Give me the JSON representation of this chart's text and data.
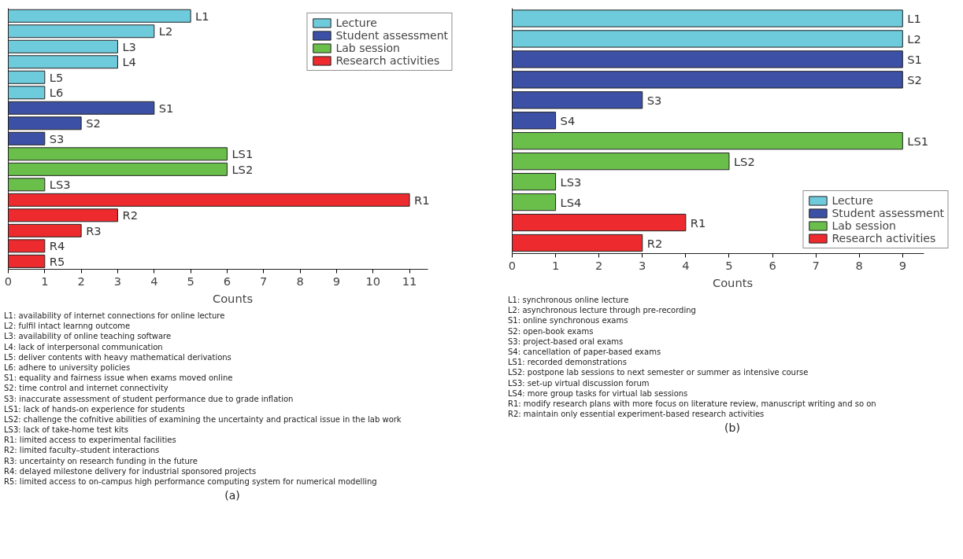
{
  "chart_data": [
    {
      "type": "bar",
      "orientation": "horizontal",
      "xlabel": "Counts",
      "xlim": [
        0,
        11.5
      ],
      "xticks": [
        0,
        1,
        2,
        3,
        4,
        5,
        6,
        7,
        8,
        9,
        10,
        11
      ],
      "tick_labels": "x",
      "grid": false,
      "legend": "top right",
      "categories": [
        "L1",
        "L2",
        "L3",
        "L4",
        "L5",
        "L6",
        "S1",
        "S2",
        "S3",
        "LS1",
        "LS2",
        "LS3",
        "R1",
        "R2",
        "R3",
        "R4",
        "R5"
      ],
      "series": [
        {
          "name": "Lecture",
          "color": "#6ecbdc",
          "values": [
            5,
            4,
            3,
            3,
            1,
            1,
            null,
            null,
            null,
            null,
            null,
            null,
            null,
            null,
            null,
            null,
            null
          ]
        },
        {
          "name": "Student assessment",
          "color": "#3c50a5",
          "values": [
            null,
            null,
            null,
            null,
            null,
            null,
            4,
            2,
            1,
            null,
            null,
            null,
            null,
            null,
            null,
            null,
            null
          ]
        },
        {
          "name": "Lab session",
          "color": "#6abf4b",
          "values": [
            null,
            null,
            null,
            null,
            null,
            null,
            null,
            null,
            null,
            6,
            6,
            1,
            null,
            null,
            null,
            null,
            null
          ]
        },
        {
          "name": "Research activities",
          "color": "#ed2a2e",
          "values": [
            null,
            null,
            null,
            null,
            null,
            null,
            null,
            null,
            null,
            null,
            null,
            null,
            11,
            3,
            2,
            1,
            1
          ]
        }
      ],
      "annotations": [
        "L1: availability of internet connections for online lecture",
        "L2: fulfil intact learnng outcome",
        "L3: availability of online teaching software",
        "L4: lack of interpersonal communication",
        "L5: deliver contents with heavy mathematical derivations",
        "L6: adhere to university policies",
        "S1: equality and fairness issue when exams moved online",
        "S2: time control and internet connectivity",
        "S3: inaccurate assessment of student performance due to grade inflation",
        "LS1: lack of hands-on experience for students",
        "LS2: challenge the cofnitive abilities of examining the uncertainty and practical issue in the lab work",
        "LS3: lack of take-home test kits",
        "R1: limited access to experimental facilities",
        "R2: limited faculty–student interactions",
        "R3: uncertainty on research funding in the future",
        "R4: delayed milestone delivery for industrial sponsored projects",
        "R5: limited access to on-campus high performance computing system for numerical modelling",
        "(a)"
      ]
    },
    {
      "type": "bar",
      "orientation": "horizontal",
      "xlabel": "Counts",
      "xlim": [
        0,
        9.5
      ],
      "xticks": [
        0,
        1,
        2,
        3,
        4,
        5,
        6,
        7,
        8,
        9
      ],
      "tick_labels": "x",
      "grid": false,
      "legend": "bottom right",
      "categories": [
        "L1",
        "L2",
        "S1",
        "S2",
        "S3",
        "S4",
        "LS1",
        "LS2",
        "LS3",
        "LS4",
        "R1",
        "R2"
      ],
      "series": [
        {
          "name": "Lecture",
          "color": "#6ecbdc",
          "values": [
            9,
            9,
            null,
            null,
            null,
            null,
            null,
            null,
            null,
            null,
            null,
            null
          ]
        },
        {
          "name": "Student assessment",
          "color": "#3c50a5",
          "values": [
            null,
            null,
            9,
            9,
            3,
            1,
            null,
            null,
            null,
            null,
            null,
            null
          ]
        },
        {
          "name": "Lab session",
          "color": "#6abf4b",
          "values": [
            null,
            null,
            null,
            null,
            null,
            null,
            9,
            5,
            1,
            1,
            null,
            null
          ]
        },
        {
          "name": "Research activities",
          "color": "#ed2a2e",
          "values": [
            null,
            null,
            null,
            null,
            null,
            null,
            null,
            null,
            null,
            null,
            4,
            3
          ]
        }
      ],
      "annotations": [
        "L1: synchronous online lecture",
        "L2: asynchronous lecture through pre-recording",
        "S1: online synchronous exams",
        "S2: open-book exams",
        "S3: project-based oral exams",
        "S4: cancellation of paper-based exams",
        "LS1: recorded demonstrations",
        "LS2: postpone lab sessions to next semester or summer as intensive course",
        "LS3: set-up virtual discussion forum",
        "LS4: more group tasks for virtual lab sessions",
        "R1: modify research plans with more focus on literature review, manuscript writing and so on",
        "R2: maintain only essential experiment-based research activities",
        "(b)"
      ]
    }
  ]
}
